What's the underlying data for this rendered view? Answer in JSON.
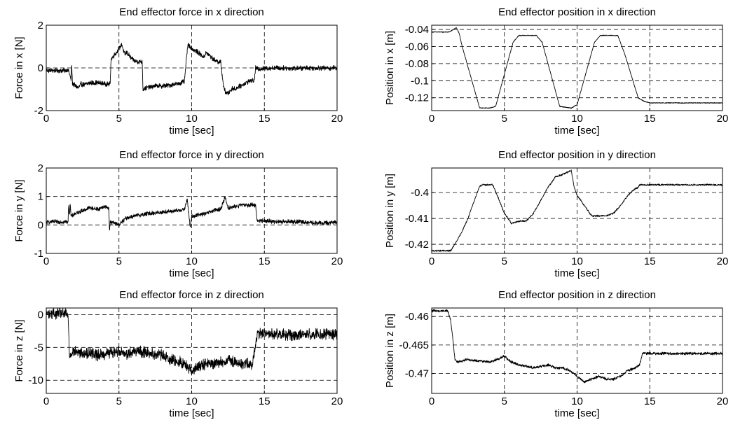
{
  "chart_data": [
    {
      "type": "line",
      "title": "End effector force in x direction",
      "xlabel": "time [sec]",
      "ylabel": "Force in x [N]",
      "xlim": [
        0,
        20
      ],
      "ylim": [
        -2,
        2
      ],
      "xticks": [
        0,
        5,
        10,
        15,
        20
      ],
      "xtick_labels": [
        "0",
        "5",
        "10",
        "15",
        "20"
      ],
      "yticks": [
        -2,
        0,
        2
      ],
      "ytick_labels": [
        "-2",
        "0",
        "2"
      ],
      "grid": true,
      "series": [
        {
          "noise": 0.12,
          "x": [
            0,
            1.55,
            1.6,
            1.7,
            1.75,
            1.8,
            2.0,
            2.2,
            2.4,
            2.6,
            3.0,
            3.5,
            4.0,
            4.4,
            4.45,
            4.5,
            4.8,
            5.0,
            5.2,
            5.4,
            5.5,
            5.8,
            6.0,
            6.3,
            6.6,
            6.65,
            7.0,
            7.5,
            8.0,
            8.5,
            9.0,
            9.5,
            9.6,
            9.7,
            9.8,
            10.0,
            10.3,
            10.5,
            10.8,
            11.0,
            11.2,
            11.5,
            11.8,
            12.0,
            12.2,
            12.3,
            12.5,
            12.8,
            13.0,
            13.2,
            13.5,
            14.0,
            14.3,
            14.4,
            14.5,
            15.0,
            16.0,
            17.0,
            18.0,
            19.0,
            20.0
          ],
          "y": [
            -0.12,
            -0.12,
            -0.3,
            -0.55,
            0.2,
            -0.7,
            -0.85,
            -0.95,
            -0.75,
            -0.8,
            -0.7,
            -0.7,
            -0.75,
            -0.75,
            0.4,
            0.45,
            0.7,
            0.9,
            1.1,
            0.6,
            0.75,
            0.5,
            0.35,
            0.3,
            0.3,
            -1.0,
            -0.9,
            -0.85,
            -0.85,
            -0.8,
            -0.75,
            -0.65,
            0.1,
            0.9,
            1.1,
            0.9,
            0.8,
            0.7,
            0.5,
            0.7,
            0.6,
            0.4,
            0.3,
            0.25,
            -0.9,
            -1.1,
            -1.2,
            -0.95,
            -1.0,
            -0.9,
            -0.8,
            -0.6,
            -0.6,
            0.0,
            -0.05,
            -0.02,
            0.0,
            -0.02,
            0.0,
            -0.01,
            0.0
          ]
        }
      ]
    },
    {
      "type": "line",
      "title": "End effector position in x direction",
      "xlabel": "time [sec]",
      "ylabel": "Position in x [m]",
      "xlim": [
        0,
        20
      ],
      "ylim": [
        -0.135,
        -0.035
      ],
      "xticks": [
        0,
        5,
        10,
        15,
        20
      ],
      "xtick_labels": [
        "0",
        "5",
        "10",
        "15",
        "20"
      ],
      "yticks": [
        -0.04,
        -0.06,
        -0.08,
        -0.1,
        -0.12
      ],
      "ytick_labels": [
        "-0.04",
        "-0.06",
        "-0.08",
        "-0.1",
        "-0.12"
      ],
      "grid": true,
      "series": [
        {
          "noise": 0.0005,
          "x": [
            0,
            1.2,
            1.5,
            1.7,
            1.9,
            2.1,
            3.3,
            4.0,
            4.4,
            5.6,
            6.0,
            7.2,
            7.6,
            8.8,
            9.6,
            10.0,
            11.2,
            11.6,
            12.8,
            13.3,
            14.2,
            14.6,
            15.0,
            20.0
          ],
          "y": [
            -0.043,
            -0.043,
            -0.04,
            -0.038,
            -0.045,
            -0.06,
            -0.132,
            -0.132,
            -0.13,
            -0.055,
            -0.047,
            -0.047,
            -0.055,
            -0.13,
            -0.132,
            -0.128,
            -0.055,
            -0.047,
            -0.047,
            -0.07,
            -0.12,
            -0.124,
            -0.126,
            -0.126
          ]
        }
      ]
    },
    {
      "type": "line",
      "title": "End effector force in y direction",
      "xlabel": "time [sec]",
      "ylabel": "Force in y [N]",
      "xlim": [
        0,
        20
      ],
      "ylim": [
        -1,
        2
      ],
      "xticks": [
        0,
        5,
        10,
        15,
        20
      ],
      "xtick_labels": [
        "0",
        "5",
        "10",
        "15",
        "20"
      ],
      "yticks": [
        -1,
        0,
        1,
        2
      ],
      "ytick_labels": [
        "-1",
        "0",
        "1",
        "2"
      ],
      "grid": true,
      "series": [
        {
          "noise": 0.08,
          "x": [
            0,
            1.5,
            1.55,
            1.6,
            1.65,
            1.7,
            2.0,
            2.5,
            3.0,
            3.5,
            4.0,
            4.3,
            4.35,
            4.4,
            4.8,
            5.0,
            5.5,
            6.0,
            7.0,
            8.0,
            9.0,
            9.5,
            9.7,
            9.9,
            10.0,
            10.5,
            11.0,
            11.5,
            12.0,
            12.3,
            12.5,
            13.0,
            13.5,
            14.0,
            14.4,
            14.5,
            15.0,
            16.0,
            17.0,
            18.0,
            19.0,
            20.0
          ],
          "y": [
            0.1,
            0.12,
            0.8,
            0.3,
            0.8,
            0.3,
            0.4,
            0.5,
            0.6,
            0.55,
            0.65,
            0.6,
            -0.2,
            0.1,
            0.05,
            0.0,
            0.25,
            0.3,
            0.4,
            0.45,
            0.5,
            0.55,
            0.9,
            -0.1,
            0.3,
            0.35,
            0.4,
            0.5,
            0.55,
            1.0,
            0.6,
            0.65,
            0.7,
            0.7,
            0.7,
            0.15,
            0.15,
            0.1,
            0.12,
            0.08,
            0.06,
            0.1
          ]
        }
      ]
    },
    {
      "type": "line",
      "title": "End effector position in y direction",
      "xlabel": "time [sec]",
      "ylabel": "Position in y [m]",
      "xlim": [
        0,
        20
      ],
      "ylim": [
        -0.4235,
        -0.3905
      ],
      "xticks": [
        0,
        5,
        10,
        15,
        20
      ],
      "xtick_labels": [
        "0",
        "5",
        "10",
        "15",
        "20"
      ],
      "yticks": [
        -0.4,
        -0.41,
        -0.42
      ],
      "ytick_labels": [
        "-0.4",
        "-0.41",
        "-0.42"
      ],
      "grid": true,
      "series": [
        {
          "noise": 0.00035,
          "x": [
            0,
            1.3,
            1.6,
            2.0,
            2.5,
            3.0,
            3.3,
            3.5,
            4.2,
            4.5,
            5.0,
            5.5,
            6.0,
            6.5,
            7.0,
            7.5,
            8.0,
            8.5,
            9.0,
            9.6,
            9.8,
            10.0,
            10.5,
            11.0,
            11.5,
            12.0,
            12.5,
            13.0,
            13.5,
            14.0,
            14.2,
            14.3,
            20.0
          ],
          "y": [
            -0.4225,
            -0.4225,
            -0.42,
            -0.416,
            -0.41,
            -0.402,
            -0.3975,
            -0.397,
            -0.397,
            -0.401,
            -0.408,
            -0.412,
            -0.411,
            -0.411,
            -0.408,
            -0.403,
            -0.398,
            -0.394,
            -0.393,
            -0.3915,
            -0.398,
            -0.401,
            -0.405,
            -0.409,
            -0.409,
            -0.409,
            -0.408,
            -0.405,
            -0.401,
            -0.3985,
            -0.398,
            -0.397,
            -0.397
          ]
        }
      ]
    },
    {
      "type": "line",
      "title": "End effector force in z direction",
      "xlabel": "time [sec]",
      "ylabel": "Force in z [N]",
      "xlim": [
        0,
        20
      ],
      "ylim": [
        -12,
        1
      ],
      "xticks": [
        0,
        5,
        10,
        15,
        20
      ],
      "xtick_labels": [
        "0",
        "5",
        "10",
        "15",
        "20"
      ],
      "yticks": [
        0,
        -5,
        -10
      ],
      "ytick_labels": [
        "0",
        "-5",
        "-10"
      ],
      "grid": true,
      "series": [
        {
          "noise": 0.9,
          "x": [
            0,
            1.4,
            1.5,
            1.55,
            1.6,
            1.8,
            2.5,
            3.0,
            3.5,
            4.0,
            4.5,
            5.0,
            5.5,
            6.0,
            7.0,
            8.0,
            8.5,
            9.0,
            9.5,
            10.0,
            10.5,
            11.0,
            11.5,
            12.0,
            12.5,
            13.0,
            13.5,
            14.2,
            14.4,
            14.5,
            15.0,
            16.0,
            17.0,
            18.0,
            19.0,
            20.0
          ],
          "y": [
            0.2,
            0.1,
            -0.5,
            -2.8,
            -6.5,
            -5.5,
            -6.0,
            -5.8,
            -6.2,
            -6.0,
            -5.8,
            -5.5,
            -6.0,
            -5.5,
            -5.8,
            -6.2,
            -6.8,
            -7.0,
            -7.5,
            -8.5,
            -8.0,
            -7.5,
            -7.5,
            -7.3,
            -7.0,
            -7.3,
            -7.5,
            -7.5,
            -4.5,
            -3.0,
            -2.9,
            -3.0,
            -3.1,
            -3.0,
            -3.0,
            -3.0
          ]
        }
      ]
    },
    {
      "type": "line",
      "title": "End effector position in z direction",
      "xlabel": "time [sec]",
      "ylabel": "Position in z [m]",
      "xlim": [
        0,
        20
      ],
      "ylim": [
        -0.4735,
        -0.4585
      ],
      "xticks": [
        0,
        5,
        10,
        15,
        20
      ],
      "xtick_labels": [
        "0",
        "5",
        "10",
        "15",
        "20"
      ],
      "yticks": [
        -0.46,
        -0.465,
        -0.47
      ],
      "ytick_labels": [
        "-0.46",
        "-0.465",
        "-0.47"
      ],
      "grid": true,
      "series": [
        {
          "noise": 0.00025,
          "x": [
            0,
            1.1,
            1.3,
            1.5,
            1.6,
            1.8,
            2.5,
            3.0,
            3.5,
            4.0,
            4.5,
            5.0,
            5.5,
            6.0,
            7.0,
            8.0,
            8.5,
            9.0,
            9.5,
            10.0,
            10.5,
            11.0,
            11.5,
            12.0,
            12.5,
            13.0,
            13.5,
            14.0,
            14.3,
            14.4,
            14.5,
            15.0,
            20.0
          ],
          "y": [
            -0.459,
            -0.459,
            -0.4605,
            -0.465,
            -0.4675,
            -0.468,
            -0.4675,
            -0.4678,
            -0.4678,
            -0.468,
            -0.4675,
            -0.467,
            -0.468,
            -0.4685,
            -0.469,
            -0.4685,
            -0.469,
            -0.469,
            -0.4695,
            -0.4705,
            -0.4715,
            -0.471,
            -0.4705,
            -0.471,
            -0.471,
            -0.4705,
            -0.4695,
            -0.469,
            -0.4685,
            -0.4675,
            -0.4665,
            -0.4665,
            -0.4665
          ]
        }
      ]
    }
  ]
}
